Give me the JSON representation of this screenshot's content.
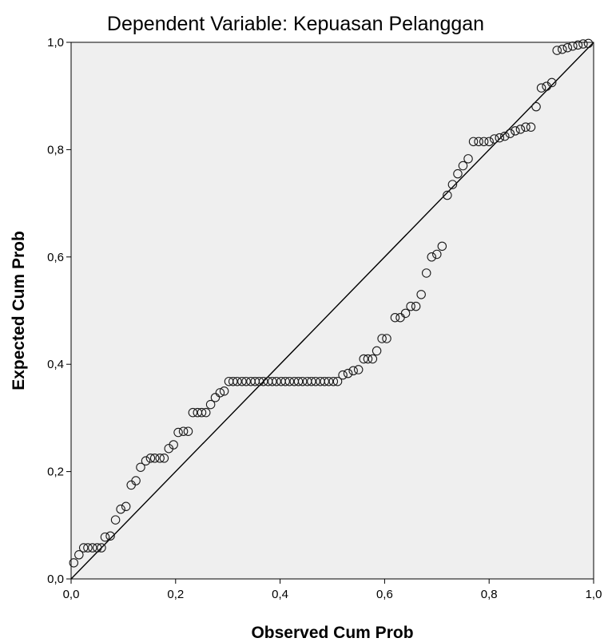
{
  "chart_data": {
    "type": "scatter",
    "title": "Dependent Variable: Kepuasan Pelanggan",
    "xlabel": "Observed Cum Prob",
    "ylabel": "Expected Cum Prob",
    "xlim": [
      0,
      1
    ],
    "ylim": [
      0,
      1
    ],
    "x_ticks": [
      "0,0",
      "0,2",
      "0,4",
      "0,6",
      "0,8",
      "1,0"
    ],
    "y_ticks": [
      "0,0",
      "0,2",
      "0,4",
      "0,6",
      "0,8",
      "1,0"
    ],
    "grid": false,
    "reference_line": {
      "from": [
        0,
        0
      ],
      "to": [
        1,
        1
      ]
    },
    "colors": {
      "plot_background": "#efefef",
      "marker_stroke": "#1a1a1a",
      "line": "#000000"
    },
    "points": [
      [
        0.005,
        0.03
      ],
      [
        0.015,
        0.045
      ],
      [
        0.024,
        0.058
      ],
      [
        0.032,
        0.058
      ],
      [
        0.041,
        0.058
      ],
      [
        0.05,
        0.058
      ],
      [
        0.058,
        0.058
      ],
      [
        0.065,
        0.078
      ],
      [
        0.075,
        0.08
      ],
      [
        0.085,
        0.11
      ],
      [
        0.095,
        0.13
      ],
      [
        0.105,
        0.135
      ],
      [
        0.115,
        0.175
      ],
      [
        0.124,
        0.183
      ],
      [
        0.133,
        0.208
      ],
      [
        0.143,
        0.22
      ],
      [
        0.152,
        0.225
      ],
      [
        0.16,
        0.225
      ],
      [
        0.17,
        0.225
      ],
      [
        0.178,
        0.225
      ],
      [
        0.187,
        0.243
      ],
      [
        0.196,
        0.25
      ],
      [
        0.205,
        0.273
      ],
      [
        0.215,
        0.275
      ],
      [
        0.224,
        0.275
      ],
      [
        0.233,
        0.31
      ],
      [
        0.242,
        0.31
      ],
      [
        0.25,
        0.31
      ],
      [
        0.258,
        0.31
      ],
      [
        0.267,
        0.325
      ],
      [
        0.276,
        0.338
      ],
      [
        0.285,
        0.347
      ],
      [
        0.293,
        0.35
      ],
      [
        0.302,
        0.368
      ],
      [
        0.31,
        0.368
      ],
      [
        0.318,
        0.368
      ],
      [
        0.327,
        0.368
      ],
      [
        0.335,
        0.368
      ],
      [
        0.344,
        0.368
      ],
      [
        0.352,
        0.368
      ],
      [
        0.36,
        0.368
      ],
      [
        0.368,
        0.368
      ],
      [
        0.377,
        0.368
      ],
      [
        0.385,
        0.368
      ],
      [
        0.393,
        0.368
      ],
      [
        0.402,
        0.368
      ],
      [
        0.41,
        0.368
      ],
      [
        0.418,
        0.368
      ],
      [
        0.427,
        0.368
      ],
      [
        0.435,
        0.368
      ],
      [
        0.443,
        0.368
      ],
      [
        0.452,
        0.368
      ],
      [
        0.46,
        0.368
      ],
      [
        0.468,
        0.368
      ],
      [
        0.477,
        0.368
      ],
      [
        0.485,
        0.368
      ],
      [
        0.493,
        0.368
      ],
      [
        0.502,
        0.368
      ],
      [
        0.51,
        0.368
      ],
      [
        0.52,
        0.38
      ],
      [
        0.53,
        0.383
      ],
      [
        0.54,
        0.388
      ],
      [
        0.55,
        0.39
      ],
      [
        0.56,
        0.41
      ],
      [
        0.568,
        0.41
      ],
      [
        0.577,
        0.41
      ],
      [
        0.585,
        0.425
      ],
      [
        0.595,
        0.448
      ],
      [
        0.604,
        0.448
      ],
      [
        0.62,
        0.487
      ],
      [
        0.63,
        0.487
      ],
      [
        0.64,
        0.495
      ],
      [
        0.65,
        0.508
      ],
      [
        0.66,
        0.508
      ],
      [
        0.67,
        0.53
      ],
      [
        0.68,
        0.57
      ],
      [
        0.69,
        0.6
      ],
      [
        0.7,
        0.605
      ],
      [
        0.71,
        0.62
      ],
      [
        0.72,
        0.715
      ],
      [
        0.73,
        0.735
      ],
      [
        0.74,
        0.755
      ],
      [
        0.75,
        0.77
      ],
      [
        0.76,
        0.783
      ],
      [
        0.77,
        0.815
      ],
      [
        0.78,
        0.815
      ],
      [
        0.79,
        0.815
      ],
      [
        0.8,
        0.815
      ],
      [
        0.81,
        0.82
      ],
      [
        0.82,
        0.822
      ],
      [
        0.83,
        0.825
      ],
      [
        0.84,
        0.83
      ],
      [
        0.85,
        0.835
      ],
      [
        0.86,
        0.838
      ],
      [
        0.87,
        0.842
      ],
      [
        0.88,
        0.842
      ],
      [
        0.89,
        0.88
      ],
      [
        0.9,
        0.915
      ],
      [
        0.91,
        0.918
      ],
      [
        0.92,
        0.925
      ],
      [
        0.93,
        0.985
      ],
      [
        0.94,
        0.987
      ],
      [
        0.95,
        0.99
      ],
      [
        0.96,
        0.993
      ],
      [
        0.97,
        0.995
      ],
      [
        0.98,
        0.997
      ],
      [
        0.99,
        0.998
      ]
    ]
  }
}
